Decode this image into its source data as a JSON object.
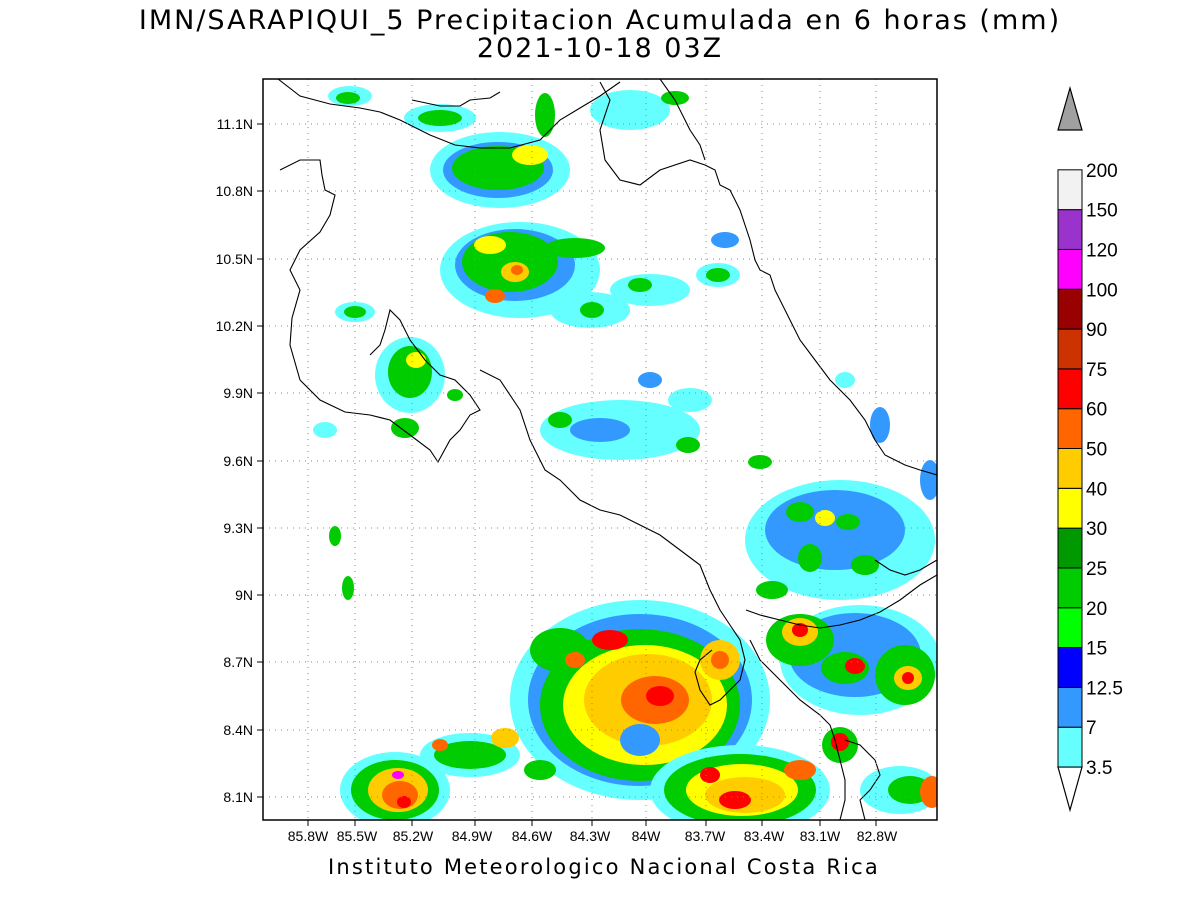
{
  "title": {
    "line1": "IMN/SARAPIQUI_5 Precipitacion Acumulada en 6 horas (mm)",
    "line2": "2021-10-18 03Z"
  },
  "footer": "Instituto Meteorologico Nacional Costa Rica",
  "axes": {
    "lon_ticks": [
      "85.8W",
      "85.5W",
      "85.2W",
      "84.9W",
      "84.6W",
      "84.3W",
      "84W",
      "83.7W",
      "83.4W",
      "83.1W",
      "82.8W"
    ],
    "lat_ticks": [
      "11.1N",
      "10.8N",
      "10.5N",
      "10.2N",
      "9.9N",
      "9.6N",
      "9.3N",
      "9N",
      "8.7N",
      "8.4N",
      "8.1N"
    ],
    "grid": "dotted"
  },
  "colorbar": {
    "labels": [
      "3.5",
      "7",
      "12.5",
      "15",
      "20",
      "25",
      "30",
      "40",
      "50",
      "60",
      "75",
      "90",
      "100",
      "120",
      "150",
      "200"
    ],
    "colors": [
      "#66ffff",
      "#3399ff",
      "#0000ff",
      "#00ff00",
      "#00cc00",
      "#009900",
      "#ffff00",
      "#ffcc00",
      "#ff6600",
      "#ff0000",
      "#cc3300",
      "#990000",
      "#ff00ff",
      "#9933cc",
      "#f2f2f2",
      "#a0a0a0"
    ]
  }
}
